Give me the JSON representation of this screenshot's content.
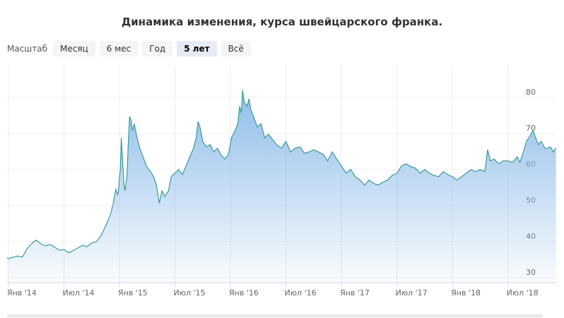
{
  "chart_data": {
    "type": "area",
    "title": "Динамика изменения, курса швейцарского франка.",
    "range_selector": {
      "label": "Масштаб",
      "buttons": [
        "Месяц",
        "6 мес",
        "Год",
        "5 лет",
        "Всё"
      ],
      "selected": 3
    },
    "color": "#3a9a9a",
    "fill_color": "#8fbde9",
    "grid": true,
    "xlim": [
      -0.15,
      59.3
    ],
    "ylim": [
      28.6,
      89
    ],
    "xticks": [
      {
        "value": 0,
        "label": "Янв '14"
      },
      {
        "value": 6,
        "label": "Июл '14"
      },
      {
        "value": 12,
        "label": "Янв '15"
      },
      {
        "value": 18,
        "label": "Июл '15"
      },
      {
        "value": 24,
        "label": "Янв '16"
      },
      {
        "value": 30,
        "label": "Июл '16"
      },
      {
        "value": 36,
        "label": "Янв '17"
      },
      {
        "value": 42,
        "label": "Июл '17"
      },
      {
        "value": 48,
        "label": "Янв '18"
      },
      {
        "value": 54,
        "label": "Июл '18"
      }
    ],
    "yticks": [
      30,
      40,
      50,
      60,
      70,
      80
    ],
    "x": [
      -0.15,
      0,
      1,
      1.5,
      2,
      2.5,
      3,
      3.5,
      4,
      4.5,
      5,
      5.5,
      6,
      6.5,
      7,
      7.5,
      8,
      8.5,
      9,
      9.5,
      10,
      10.5,
      11,
      11.3,
      11.6,
      11.8,
      11.9,
      12,
      12.1,
      12.2,
      12.35,
      12.5,
      12.6,
      12.8,
      13,
      13.1,
      13.25,
      13.4,
      13.6,
      13.9,
      14.2,
      14.5,
      14.9,
      15.3,
      15.7,
      16,
      16.3,
      16.6,
      16.9,
      17.3,
      17.6,
      18,
      18.4,
      18.8,
      19.2,
      19.6,
      20,
      20.3,
      20.5,
      20.7,
      21,
      21.4,
      21.8,
      22.2,
      22.6,
      23,
      23.4,
      23.8,
      24.1,
      24.5,
      24.8,
      25,
      25.2,
      25.3,
      25.5,
      25.8,
      26,
      26.2,
      26.5,
      26.9,
      27.3,
      27.7,
      28.1,
      28.6,
      29,
      29.5,
      30,
      30.5,
      31,
      31.5,
      32,
      32.5,
      33,
      33.5,
      34,
      34.5,
      35,
      35.5,
      36,
      36.5,
      37,
      37.5,
      38,
      38.5,
      39,
      39.5,
      40,
      40.5,
      41,
      41.5,
      42,
      42.5,
      43,
      43.5,
      44,
      44.5,
      45,
      45.5,
      46,
      46.5,
      47,
      47.5,
      48,
      48.5,
      49,
      49.5,
      50,
      50.5,
      51,
      51.5,
      51.8,
      52.1,
      52.5,
      53,
      53.5,
      54,
      54.5,
      55,
      55.3,
      55.6,
      56,
      56.4,
      56.7,
      57,
      57.3,
      57.6,
      58,
      58.3,
      58.6,
      58.9,
      59.2
    ],
    "values": [
      35.5,
      35.3,
      36,
      35.7,
      38,
      39.4,
      40.4,
      39.4,
      38.8,
      39.2,
      38.4,
      37.6,
      37.8,
      36.9,
      37.5,
      38.2,
      39,
      38.6,
      39.6,
      40,
      41.6,
      44.3,
      47.3,
      50.2,
      54.5,
      53.1,
      54.1,
      58,
      60,
      68.8,
      62,
      55.7,
      54.1,
      58,
      69.8,
      74.7,
      73.7,
      70.8,
      72.7,
      68.8,
      65.9,
      63.9,
      61,
      59.6,
      58,
      55.7,
      50.6,
      54.1,
      52.5,
      54.1,
      58,
      59,
      60,
      58.6,
      61,
      63.5,
      65.9,
      68.8,
      73.3,
      71.8,
      67.8,
      66.3,
      66.9,
      64.9,
      65.9,
      63.9,
      62.9,
      64.3,
      68.8,
      70.8,
      72.7,
      77.6,
      75.7,
      82,
      78.6,
      77.6,
      79.6,
      76.7,
      74.7,
      71.8,
      72.7,
      68.8,
      69.8,
      68.2,
      66.9,
      65.9,
      67.8,
      64.9,
      65.9,
      66.3,
      64.5,
      64.9,
      65.5,
      64.9,
      64.3,
      62.4,
      64.9,
      62.9,
      61,
      59,
      60,
      58,
      57.1,
      55.7,
      57.1,
      56.1,
      55.7,
      56.5,
      57.1,
      58.4,
      59,
      61,
      61.6,
      60.8,
      60.4,
      59,
      60,
      59,
      58.4,
      58,
      59.4,
      58.6,
      58,
      57.1,
      58,
      59,
      60,
      59.4,
      60,
      59.4,
      65.5,
      62.4,
      62.9,
      61.6,
      62.4,
      62.4,
      62,
      63.5,
      62,
      64.3,
      67.8,
      69.4,
      70.8,
      68.8,
      66.9,
      67.8,
      65.9,
      65.9,
      66.3,
      64.9,
      65.9
    ]
  }
}
